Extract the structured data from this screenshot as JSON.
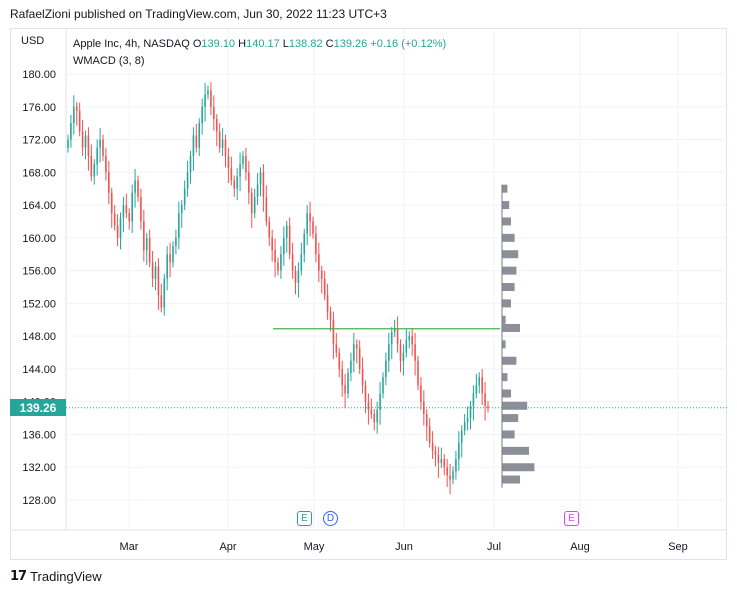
{
  "header": {
    "text": "RafaelZioni published on TradingView.com, Jun 30, 2022 11:23 UTC+3"
  },
  "footer": {
    "logo_mark": "17",
    "brand": "TradingView"
  },
  "legend": {
    "symbol": "Apple Inc, 4h, NASDAQ",
    "open_label": "O",
    "open": "139.10",
    "high_label": "H",
    "high": "140.17",
    "low_label": "L",
    "low": "138.82",
    "close_label": "C",
    "close": "139.26",
    "change": "+0.16 (+0.12%)",
    "indicator": "WMACD (3, 8)"
  },
  "currency": "USD",
  "events": {
    "earnings1": "E",
    "dividend": "D",
    "earnings2": "E"
  },
  "last_price_label": "139.26",
  "colors": {
    "up": "#26a69a",
    "down": "#ef5350",
    "grid": "#f0f3fa",
    "hline": "#4caf50",
    "profile": "#787b86"
  },
  "chart_data": {
    "type": "candlestick",
    "y_axis": {
      "ticks": [
        "180.00",
        "176.00",
        "172.00",
        "168.00",
        "164.00",
        "160.00",
        "156.00",
        "152.00",
        "148.00",
        "144.00",
        "140.00",
        "136.00",
        "132.00",
        "128.00"
      ],
      "range": [
        126.5,
        181.5
      ]
    },
    "x_axis": {
      "ticks": [
        "Mar",
        "Apr",
        "May",
        "Jun",
        "Jul",
        "Aug",
        "Sep"
      ]
    },
    "last_price": 139.26,
    "horizontal_line": 148.9,
    "series_close": [
      172,
      174,
      176,
      175.5,
      173,
      171,
      172.5,
      170,
      167.5,
      169,
      171,
      172,
      170,
      168,
      165.5,
      163,
      161.5,
      160,
      162.5,
      164,
      163,
      162,
      165.5,
      167,
      165,
      162,
      158.5,
      160,
      157,
      155,
      156.5,
      153,
      151.5,
      155,
      158,
      157,
      159,
      160,
      163,
      164,
      166,
      168,
      170,
      172.5,
      171,
      174,
      176,
      177.5,
      178,
      176,
      174.5,
      173,
      171,
      172,
      170,
      168.5,
      167,
      166,
      167.5,
      169,
      170,
      168,
      165.5,
      163,
      165,
      166.5,
      168,
      165,
      162,
      160,
      158.5,
      157,
      156,
      158,
      160,
      161.5,
      158,
      156,
      154.5,
      156,
      158,
      160.5,
      163,
      162,
      160.5,
      158,
      156,
      155,
      153,
      151,
      150,
      147,
      146,
      144,
      142,
      141,
      143.5,
      145,
      147,
      146.5,
      144,
      142,
      140,
      139,
      138.5,
      137.5,
      139,
      141,
      143,
      145,
      147,
      148.5,
      149,
      147,
      145,
      146,
      147.5,
      148,
      147,
      145,
      142,
      140,
      138.5,
      137,
      135,
      134,
      133.5,
      132.5,
      133,
      132,
      131,
      130.5,
      131.5,
      133,
      135,
      136.5,
      137.5,
      138,
      139.5,
      141,
      142,
      143,
      141,
      139.5,
      139.26
    ],
    "volume_profile": [
      {
        "price": 166,
        "width": 6
      },
      {
        "price": 164,
        "width": 8
      },
      {
        "price": 162,
        "width": 10
      },
      {
        "price": 160,
        "width": 14
      },
      {
        "price": 158,
        "width": 18
      },
      {
        "price": 156,
        "width": 16
      },
      {
        "price": 154,
        "width": 14
      },
      {
        "price": 152,
        "width": 10
      },
      {
        "price": 150,
        "width": 4
      },
      {
        "price": 149,
        "width": 20
      },
      {
        "price": 147,
        "width": 4
      },
      {
        "price": 145,
        "width": 16
      },
      {
        "price": 143,
        "width": 6
      },
      {
        "price": 141,
        "width": 10
      },
      {
        "price": 139.5,
        "width": 28
      },
      {
        "price": 138,
        "width": 18
      },
      {
        "price": 136,
        "width": 14
      },
      {
        "price": 134,
        "width": 30
      },
      {
        "price": 132,
        "width": 36
      },
      {
        "price": 130.5,
        "width": 20
      }
    ]
  }
}
